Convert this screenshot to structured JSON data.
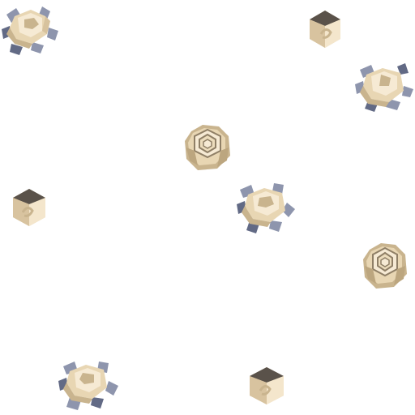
{
  "scene": {
    "background": "#ffffff",
    "palette": {
      "rock_light": "#f6ead4",
      "rock_mid": "#e8d6b3",
      "rock_dark": "#c9b48e",
      "rock_edge": "#8f7f66",
      "rock_top": "#5a524a",
      "debris_blue": "#8e95ad",
      "debris_dark": "#626a85"
    },
    "sprite_kinds": [
      "small-hex-rock",
      "ringed-rock",
      "shattered-rock"
    ],
    "sprites": [
      {
        "name": "shattered-rock-1",
        "kind": "shattered-rock"
      },
      {
        "name": "small-hex-rock-1",
        "kind": "small-hex-rock"
      },
      {
        "name": "shattered-rock-2",
        "kind": "shattered-rock"
      },
      {
        "name": "ringed-rock-1",
        "kind": "ringed-rock"
      },
      {
        "name": "small-hex-rock-2",
        "kind": "small-hex-rock"
      },
      {
        "name": "shattered-rock-3",
        "kind": "shattered-rock"
      },
      {
        "name": "ringed-rock-2",
        "kind": "ringed-rock"
      },
      {
        "name": "shattered-rock-4",
        "kind": "shattered-rock"
      },
      {
        "name": "small-hex-rock-3",
        "kind": "small-hex-rock"
      }
    ]
  }
}
